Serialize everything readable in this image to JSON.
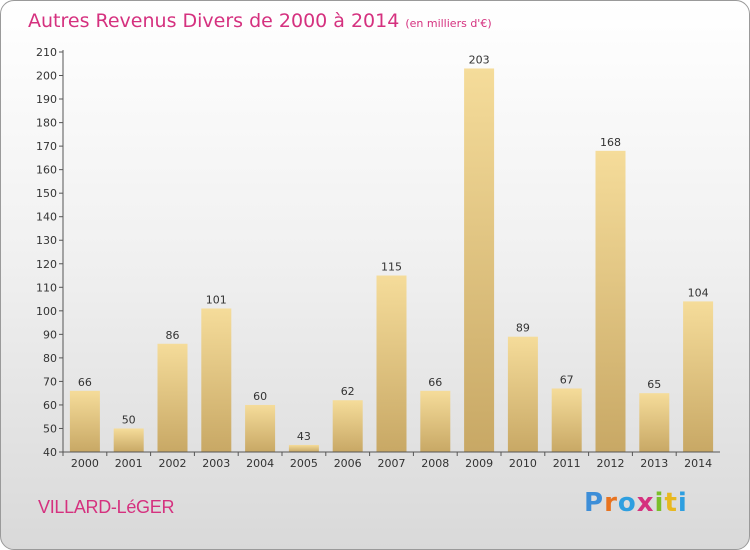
{
  "chart_data": {
    "type": "bar",
    "title": "Autres Revenus Divers de 2000 à 2014",
    "subtitle": "(en milliers d'€)",
    "categories": [
      "2000",
      "2001",
      "2002",
      "2003",
      "2004",
      "2005",
      "2006",
      "2007",
      "2008",
      "2009",
      "2010",
      "2011",
      "2012",
      "2013",
      "2014"
    ],
    "values": [
      66,
      50,
      86,
      101,
      60,
      43,
      62,
      115,
      66,
      203,
      89,
      67,
      168,
      65,
      104
    ],
    "ylim": [
      40,
      210
    ],
    "yticks": [
      40,
      50,
      60,
      70,
      80,
      90,
      100,
      110,
      120,
      130,
      140,
      150,
      160,
      170,
      180,
      190,
      200,
      210
    ],
    "grid": false,
    "data_labels": true,
    "colors": {
      "bar_light": "#f5dc9a",
      "bar_dark": "#c8a865",
      "axis": "#555555",
      "text": "#333333",
      "title": "#d5317f"
    }
  },
  "footer": {
    "commune": "VILLARD-LéGER",
    "logo_text": "Proxiti",
    "logo_colors": [
      "#3d8ed8",
      "#e8731f",
      "#2e9fe0",
      "#d5317f",
      "#7bbf2a",
      "#e8b81f",
      "#2e9fe0"
    ]
  }
}
